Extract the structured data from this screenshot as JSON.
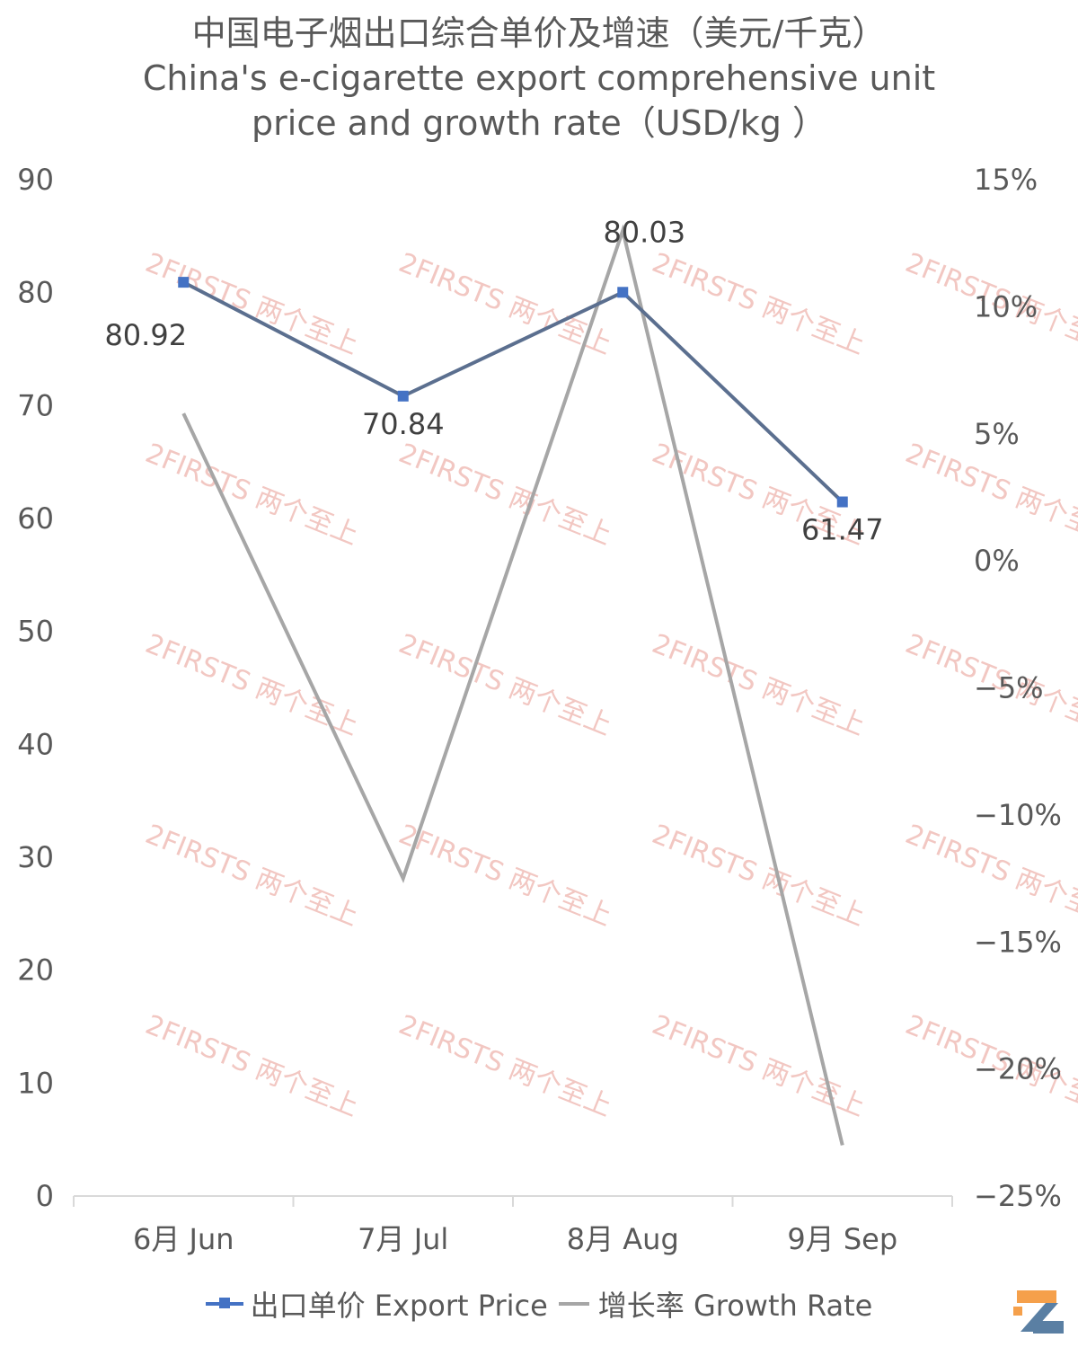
{
  "title": {
    "line1": "中国电子烟出口综合单价及增速（美元/千克）",
    "line2": "China's e-cigarette export comprehensive unit",
    "line3": "price and growth rate（USD/kg ）"
  },
  "watermark_text": "2FIRSTS 两个至上",
  "chart_data": {
    "type": "line",
    "categories": [
      "6月 Jun",
      "7月 Jul",
      "8月 Aug",
      "9月 Sep"
    ],
    "series": [
      {
        "name": "出口单价 Export Price",
        "axis": "left",
        "values": [
          80.92,
          70.84,
          80.03,
          61.47
        ],
        "color": "#4472c4",
        "marker": "square",
        "data_labels": [
          "80.92",
          "70.84",
          "80.03",
          "61.47"
        ]
      },
      {
        "name": "增长率 Growth Rate",
        "axis": "right",
        "values": [
          5.8,
          -12.5,
          13.0,
          -23.0
        ],
        "color": "#a6a6a6"
      }
    ],
    "y_left": {
      "min": 0,
      "max": 90,
      "ticks": [
        "0",
        "10",
        "20",
        "30",
        "40",
        "50",
        "60",
        "70",
        "80",
        "90"
      ]
    },
    "y_right": {
      "min": -25,
      "max": 15,
      "ticks": [
        "−25%",
        "−20%",
        "−15%",
        "−10%",
        "−5%",
        "0%",
        "5%",
        "10%",
        "15%"
      ]
    },
    "grid": false,
    "legend_position": "bottom"
  },
  "legend": {
    "price_label": "出口单价 Export Price",
    "rate_label": "增长率 Growth Rate"
  },
  "colors": {
    "accent": "#4472c4",
    "secondary": "#a6a6a6",
    "logo_orange": "#f5a04b",
    "logo_blue": "#5a7fa3"
  }
}
